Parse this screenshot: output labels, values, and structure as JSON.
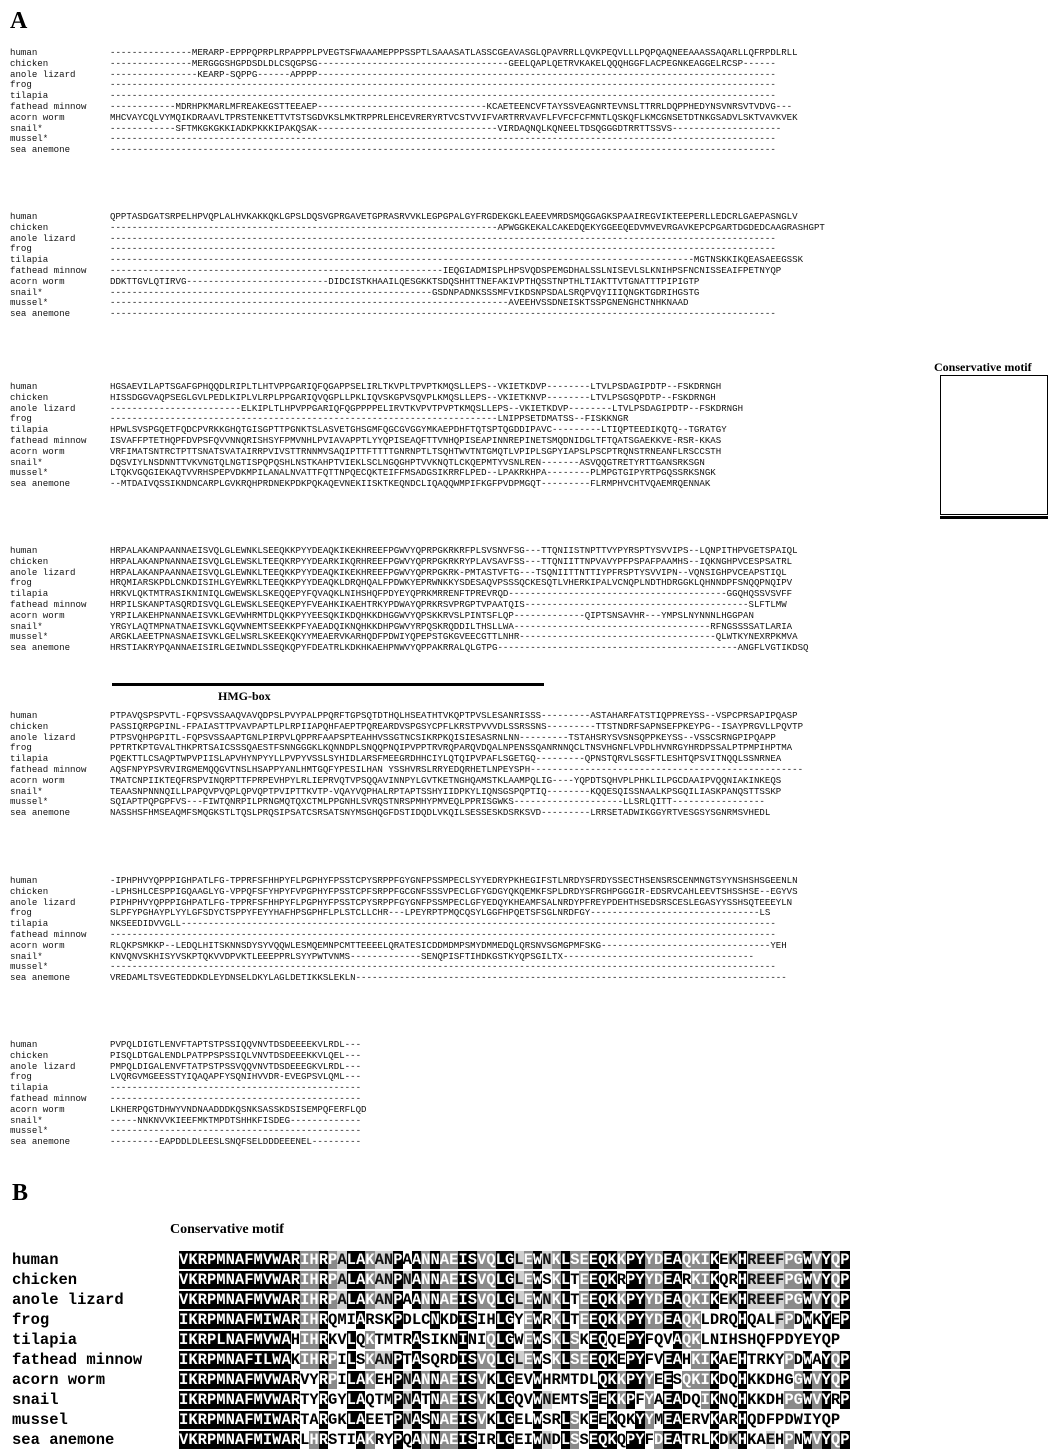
{
  "panels": {
    "a": "A",
    "b": "B"
  },
  "labels": {
    "conservative_motif": "Conservative motif",
    "hmg_box": "HMG-box"
  },
  "species": [
    "human",
    "chicken",
    "anole lizard",
    "frog",
    "tilapia",
    "fathead minnow",
    "acorn worm",
    "snail*",
    "mussel*",
    "sea anemone"
  ],
  "species_b": [
    "human",
    "chicken",
    "anole lizard",
    "frog",
    "tilapia",
    "fathead minnow",
    "acorn worm",
    "snail",
    "mussel",
    "sea anemone"
  ],
  "blocks": [
    [
      "---------------MERARP-EPPPQPRPLRPAPPPLPVEGTSFWAAAMEPPPSSPTLSAAASATLASSCGEAVASGLQPAVRRLLQVKPEQVLLLPQPQAQNEEAAASSAQARLLQFRPDLRLL",
      "---------------MERGGGSHGPDSDLDLCSQGPSG-----------------------------------GEELQAPLQETRVKAKELQQQHGGFLACPEGNKEAGGELRCSP------",
      "----------------KEARP-SQPPG------APPPP------------------------------------------------------------------------------------",
      "--------------------------------------------------------------------------------------------------------------------------",
      "--------------------------------------------------------------------------------------------------------------------------",
      "------------MDRHPKMARLMFREAKEGSTTEEAEP-------------------------------KCAETEENCVFTAYSSVEAGNRTEVNSLTTRRLDQPPHEDYNSVNRSVTVDVG---",
      "MHCVAYCQLVYMQIKDRAAVLTPRSTENKETTVTSTSGDVKSLMKTRPPRLEHCEVRERYRTVCSTVVIFVARTRRVAVFLFVFCFCFMNTLQSKQFLKMCGNSETDTNKGSADVLSKTVAVKVEK",
      "------------SFTMKGKGKKIADKPKKKIPAKQSAK---------------------------------VIRDAQNQLKQNEELTDSQGGGDTRRTTSSVS--------------------",
      "--------------------------------------------------------------------------------------------------------------------------",
      "--------------------------------------------------------------------------------------------------------------------------"
    ],
    [
      "QPPTASDGATSRPELHPVQPLALHVKAKKQKLGPSLDQSVGPRGAVETGPRASRVVKLEGPGPALGYFRGDEKGKLEAEEVMRDSMQGGAGKSPAAIREGVIKTEEPERLLEDCRLGAEPASNGLV",
      "-----------------------------------------------------------------------APWGGKEKALCAKEDQEKYGGEEQEDVMVEVRGAVKEPCPGARTDGDEDCAAGRASHGPT",
      "--------------------------------------------------------------------------------------------------------------------------",
      "--------------------------------------------------------------------------------------------------------------------------",
      "-----------------------------------------------------------------------------------------------------------MGTNSKKIKQEASAEEGSSK",
      "-------------------------------------------------------------IEQGIADMISPLHPSVQDSPEMGDHALSSLNISEVLSLKNIHPSFNCNISSEAIFPETNYQP",
      "DDKTTGVLQTIRVG--------------------------DIDCISTKHAAILQESGKKTSDQSHHTTNEFAKIVPTHQSSTNPTHLTIAKTTVTGNATTTPIPIGTP",
      "-----------------------------------------------------------GSDNPADNKSSSMFVIKDSNPSDALSRQPVQYIIIQNGKTGDRIHGSTG",
      "-------------------------------------------------------------------------AVEEHVSSDNEISKTSSPGNENGHCTNHKNAAD",
      "--------------------------------------------------------------------------------------------------------------------------"
    ],
    [
      "HGSAEVILAPTSGAFGPHQQDLRIPLTLHTVPPGARIQFQGAPPSELIRLTKVPLTPVPTKMQSLLEPS--VKIETKDVP--------LTVLPSDAGIPDTP--FSKDRNGH",
      "HISSDGGVAQPSEGLGVLPEDLKIPLVLRPLPPGARIQVQGPLLPKLIQVSKGPVSQVPLKMQSLLEPS--VKIETKNVP--------LTVLPSGSQPDTP--FSKDRNGH",
      "------------------------ELKIPLTLHPVPPGARIQFQGPPPPELIRVTKVPVTPVPTKMQSLLEPS--VKIETKDVP--------LTVLPSDAGIPDTP--FSKDRNGH",
      "-----------------------------------------------------------------------LNIPPSETDMATSS--FISKKNGR",
      "HPWLSVSPGQETFQDCPVRKKGHQTGISGPTTPGNKTSLASVETGHSGMFQGCGVGGYMKAEPDHFTQTSPTQGDDIPAVC---------LTIQPTEEDIKQTQ--TGRATGY",
      "ISVAFFPTETHQPFDVPSFQVVNNQRISHSYFPMVNHLPVIAVAPPTLYYQPISEAQFTTVNHQPISEAPINNREPINETSMQDNIDGLTFTQATSGAEKKVE-RSR-KKAS",
      "VRFIMATSNTRCTPTTSNATSVATAIRRPVIVSTTRNNMVSAQIPTTFTTTTGNRNPTLTSQHTWVTNTGMQTLVPIPLSGPYIAPSLPSCPTRQNSTRNEANFLRSCCSTH",
      "DQSVIYLNSDNNTTVKVNGTQLNGTISPQPQSHLNSTKAHPTVIEKLSCLNGQGHPTVVKNQTLCKQEPMTYVSNLREN-------ASVQQGTRETYRTTGANSRKSGN",
      "LTQKVGQGIEKAQTVVRHSPEPVDKMPILANALNVATTFQTTNPQECQKTEIFFMSADGSIKRRFLPED--LPAKRKHPA--------PLMPGTGIPYRTPGQSSRKSNGK",
      "--MTDAIVQSSIKNDNCARPLGVKRQHPRDNEKPDKPQKAQEVNEKIISKTKEQNDCLIQAQQWMPIFKGFPVDPMGQT---------FLRMPHVCHTVQAEMRQENNAK"
    ],
    [
      "HRPALAKANPAANNAEISVQLGLEWNKLSEEQKKPYYDEAQKIKEKHREEFPGWVYQPRPGKRKRFPLSVSNVFSG---TTQNIISTNPTTVYPYRSPTYSVVIPS--LQNPITHPVGETSPAIQL",
      "HRPALAKANPNANNAEISVQLGLEWSKLTEEQKRPYYDEARKIKQRHREEFPGWVYQPRPGKRKRYPLAVSAVFSS---TTQNIITTNPVAVYPFPSPAFPAAMHS--IQKNGHPVCESPSATRL",
      "HRPALAKANPAANNAEISVQLGLEWNKLTEEQKKPYYDEAQKIKEKHREEFPGWVYQPRPGKRK-PMTASTVFTG---TSQNIITTNTTIYPFRSPTYSVVIPN--VQNSIGHPVCEAPSTIQL",
      "HRQMIARSKPDLCNKDISIHLGYEWRKLTEEQKKPYYDEAQKLDRQHQALFPDWKYEPRWNKKYSDESAQVPSSSQCKESQTLVHERKIPALVCNQPLNDTHDRGGKLQHNNDPFSNQQPNQIPV",
      "HRKVLQKTMTRASIKNINIQLGWEWSKLSKEQQEPYFQVAQKLNIHSHQFPDYEYQPRKMRRENFTPREVRQD----------------------------------------GGQHQSSVSVFF",
      "HRPILSKANPTASQRDISVQLGLEWSKLSEEQKEPYFVEAHKIKAEHTRKYPDWAYQPRKRSVPRGPTVPAATQIS-----------------------------------------SLFTLMW",
      "YRPILAKEHPNANNAEISVKLGEVWHRMTDLQKKPYYEESQKIKDQHKKDHGGWVYQPSKKRVSLPINTSFLQP-------------QIPTSNSAVHR---YMPSLNYNNNLHGGPAN",
      "YRGYLAQTMPNATNAEISVKLGQVWNEMTSEEKKPFYAEADQIKNQHKKDHPGWVYRPQSKRQDDILTHSLLWA------------------------------------RFNGSSSSATLARIA",
      "ARGKLAEETPNASNAEISVKLGELWSRLSKEEKQKYYMEAERVKARHQDFPDWIYQPEPSTGKGVEECGTTLNHR------------------------------------QLWTKYNEXRPKMVA",
      "HRSTIAKRYPQANNAEISIRLGEIWNDLSSEQKQPYFDEATRLKDKHKAEHPNWVYQPPAKRRALQLGTPG--------------------------------------------ANGFLVGTIKDSQ"
    ],
    [
      "PTPAVQSPSPVTL-FQPSVSSAAQVAVQDPSLPVYPALPPQRFTGPSQTDTHQLHSEATHTVKQPTPVSLESANRISSS---------ASTAHARFATSTIQPPREYSS--VSPCPRSAPIPQASP",
      "PASSIQRPGPINL-FPAIASTTPVAVPAPTLPLRPIIAPQHFAEPTPQREARDVSPGSYCPFLKRSTPVVVDLSSRSSNS---------TTSTNDRFSAPNSEFPKEYPG--ISAYPRGVLLPQVTP",
      "PTPSVQHPGPITL-FQPSVSSAAPTGNLPIRPVLQPPRFAAPSPTEAHHVSSGTNCSIKRPKQISIESASRNLNN---------TSTAHSRYSVSNSQPPKEYSS--VSSCSRNGPIPQAPP",
      "PPTRTKPTGVALTHKPRTSAICSSSQAESTFSNNGGGKLKQNNDPLSNQQPNQIPVPPTRVRQPARQVDQALNPENSSQANRNNQCLTNSVHGNFLVPDLHVNRGYHRDPSSALPTPMPIHPTMA",
      "PQEKTTLCSAQPTWPVPIISLAPVHYNPYYLLPVPYVSSLSYHIDLARSFMEEGRDHHCIYLQTQIPVPAFLSGETGQ---------QPNSTQRVLSGSFTLESHTQPSVITNQQLSSNRNEA",
      "AQSFNPYPSVRVIRGMEMQQGVTNSLHSAPPYANLHMTGQFYPESILHAN YSSHVRSLRRYEDQRHETLNPEYSPH--------------------------------------------------",
      "TMATCNPIIKTEQFRSPVINQRPTTFPRPEVHPYLRLIEPRVQTVPSQQAVINNPYLGVTKETNGHQAMSTKLAAMPQLIG----YQPDTSQHVPLPHKLILPGCDAAIPVQQNIAKINKEQS",
      "TEAASNPNNNQILLPAPQVPVQPLQPVQPTPVIPTTKVTP-VQAYVQPHALRPTAPTSSHYIIDPKYLIQNSGSPQPTIQ--------KQQESQISSNAALKPSGQILIASKPANQSTTSSKP",
      "SQIAPTPQPGPFVS---FIWTQNRPILPRNGMQTQXCTMLPPGNHLSVRQSTNRSPMHYPMVEQLPPRISGWKS--------------------LLSRLQITT-----------------",
      "NASSHSFHMSEAQMFSMQGKSTLTQSLPRQSIPSATCSRSATSNYMSGHQGFDSTIDQDLVKQILSESSESKDSRKSVD---------LRRSETADWIKGGYRTVESGSYSGNRMSVHEDL"
    ],
    [
      "-IPHPHVYQPPPIGHPATLFG-TPPRFSFHHPYFLPGPHYFPSSTCPYSRPPFGYGNFPSSMPECLSYYEDRYPKHEGIFSTLNRDYSFRDYSSECTHSENSRSCENMNGTSYYNSHSHSGEENLN",
      "-LPHSHLCESPPIGQAAGLYG-VPPQFSFYHPYFVPGPHYFPSSTCPFSRPPFGCGNFSSSVPECLGFYGDGYQKQEMKFSPLDRDYSFRGHPGGGIR-EDSRVCAHLEEVTSHSSHSE--EGYVS",
      "PIPHPHVYQPPPIGHPATLFG-TPPRFSFHHPYFLPGPHYFPSSTCPYSRPPFGYGNFPSSMPECLGFYEDQYKHEAMFSALNRDYPFREYPDEHTHSEDSRSCESLEGASYYSSHSQTEEEYLN",
      "SLPFYPGHAYPLYYLGFSDYCTSPPYFEYYHAFHPSGPHFLPLSTCLLCHR---LPEYRPTPMQCQSYLGGFHPQETSFSGLNRDFGY-------------------------------LS",
      "NKSEEDIDVVGLL-------------------------------------------------------------------------------------------------------------",
      "--------------------------------------------------------------------------------------------------------------------------",
      "RLQKPSMKKP--LEDQLHITSKNNSDYSYVQQWLESMQEMNPCMTTEEEELQRATESICDDMDMPSMYDMMEDQLQRSNVSGMGPMFSKG-------------------------------YEH",
      "KNVQNVSKHISYVSKPTQKVVDPVKTLEEEPPRLSYYPWTVNMS-------------SENQPISFTIHDKGSTKYQPSGILTX-----------------------------------",
      "--------------------------------------------------------------------------------------------------------------------------",
      "VREDAMLTSVEGTEDDKDLEYDNSELDKYLAGLDETIKKSLEKLN-------------------------------------------------------------------------------"
    ],
    [
      "PVPQLDIGTLENVFTAPTSTPSSIQQVNVTDSDEEEEKVLRDL---",
      "PISQLDTGALENDLPATPPSPSSIQLVNVTDSDEEEKKVLQEL---",
      "PMPQLDIGALENVFTATPSTPSSVQQVNVTDSDEEEGKVLRDL---",
      "LVQRGVMGEESSTYIQAQAPFYSQNIHVVDR-EVEGPSVLQML---",
      "----------------------------------------------",
      "----------------------------------------------",
      "LKHERPQGTDHWYVNDNAADDDKQSNKSASSKDSISEMPQFERFLQD",
      "-----NNKNVVKIEEFMKTMPDTSHHKFISDEG-------------",
      "----------------------------------------------",
      "---------EAPDDLDLEESLSNQFSELDDDEEENEL---------"
    ]
  ],
  "panel_b_seqs": [
    "VKRPMNAFMVWARIHRPALAKANPAANNAEISVQLGLEWNKLSEEQKKPYYDEAQKIKEKHREEFPGWVYQP",
    "VKRPMNAFMVWARIHRPALAKANPNANNAEISVQLGLEWSKLTEEQKRPYYDEARKIKQRHREEFPGWVYQP",
    "VKRPMNAFMVWARIHRPALAKANPAANNAEISVQLGLEWNKLTEEQKKPYYDEAQKIKEKHREEFPGWVYQP",
    "IKRPMNAFMIWARIHRQMIARSKPDLCNKDISIHLGYEWRKLTEEQKKPYYDEAQKLDRQHQALFPDWKYEP",
    "IKRPLNAFMVWAHIHRKVLQKTMTRASIKNINIQLGWEWSKLSKEQQEPYFQVAQKLNIHSHQFPDYEYQP",
    "IKRPMNAFILWAKIHRPILSKANPTASQRDISVQLGLEWSKLSEEQKEPYFVEAHKIKAEHTRKYPDWAYQP",
    "IKRPMNAFMVWARVYRPILAKEHPNANNAEISVKLGEVWHRMTDLQKKPYYEESQKIKDQHKKDHGGWVYQP",
    "IKRPMNAFMVWARTYRGYLAQTMPNATNAEISVKLGQVWNEMTSEEKKPFYAEADQIKNQHKKDHPGWVYRP",
    "IKRPMNAFMIWARTARGKLAEETPNASNAEISVKLGELWSRLSKEEKQKYYMEAERVKARHQDFPDWIYQP",
    "VKRPMNAFMIWARLHRSTIAKRYPQANNAEISIRLGEIWNDLSSEQKQPYFDEATRLKDKHKAEHPNWVYQP"
  ],
  "colors": {
    "conserved": "#000000",
    "similar": "#8a8a8a",
    "weak": "#cfcfcf"
  }
}
